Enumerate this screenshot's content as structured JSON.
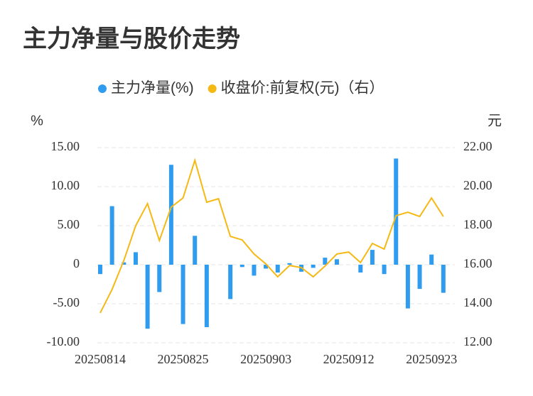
{
  "chart_data": {
    "type": "bar",
    "title": "主力净量与股价走势",
    "y_label": "%",
    "y2_label": "元",
    "categories": [
      "20250814",
      null,
      null,
      null,
      null,
      null,
      null,
      "20250825",
      null,
      null,
      null,
      null,
      null,
      null,
      "20250903",
      null,
      null,
      null,
      null,
      null,
      null,
      "20250912",
      null,
      null,
      null,
      null,
      null,
      null,
      "20250923",
      null
    ],
    "series": [
      {
        "name": "主力净量(%)",
        "color": "#2f9cf0",
        "type": "bar",
        "values": [
          -1.2,
          7.5,
          0.3,
          1.6,
          -8.2,
          -3.5,
          12.8,
          -7.6,
          3.7,
          -8.0,
          0.0,
          -4.4,
          -0.3,
          -1.4,
          -0.5,
          -1.0,
          0.2,
          -0.9,
          -0.4,
          0.9,
          0.7,
          0.0,
          -1.0,
          1.9,
          -1.2,
          13.6,
          -5.6,
          -3.1,
          1.3,
          -3.6
        ]
      },
      {
        "name": "收盘价:前复权(元)（右）",
        "color": "#f5b914",
        "type": "line",
        "axis": "y2",
        "values": [
          13.53,
          14.73,
          16.22,
          18.0,
          19.13,
          17.24,
          18.95,
          19.42,
          21.35,
          19.2,
          19.38,
          17.45,
          17.27,
          16.55,
          16.04,
          15.38,
          15.96,
          15.85,
          15.38,
          15.93,
          16.55,
          16.65,
          16.11,
          17.09,
          16.8,
          18.51,
          18.69,
          18.47,
          19.42,
          18.47
        ]
      }
    ],
    "ylim": [
      -10,
      15
    ],
    "yticks": [
      {
        "value": -10,
        "label": "-10.00"
      },
      {
        "value": -5,
        "label": "-5.00"
      },
      {
        "value": 0,
        "label": "0"
      },
      {
        "value": 5,
        "label": "5.00"
      },
      {
        "value": 10,
        "label": "10.00"
      },
      {
        "value": 15,
        "label": "15.00"
      }
    ],
    "y2lim": [
      12,
      22
    ],
    "y2ticks": [
      {
        "value": 12,
        "label": "12.00"
      },
      {
        "value": 14,
        "label": "14.00"
      },
      {
        "value": 16,
        "label": "16.00"
      },
      {
        "value": 18,
        "label": "18.00"
      },
      {
        "value": 20,
        "label": "20.00"
      },
      {
        "value": 22,
        "label": "22.00"
      }
    ],
    "grid": true,
    "legend": "top"
  }
}
